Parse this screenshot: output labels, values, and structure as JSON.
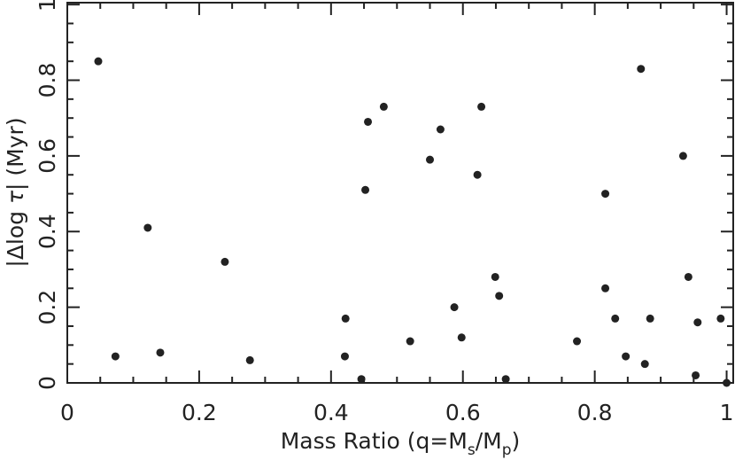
{
  "chart_data": {
    "type": "scatter",
    "x_label": [
      "Mass Ratio (q=M",
      "s",
      "/M",
      "p",
      ")"
    ],
    "y_label": [
      "|Δlog ",
      "τ",
      "| (Myr)"
    ],
    "x": [
      0.047,
      0.073,
      0.122,
      0.141,
      0.239,
      0.277,
      0.422,
      0.421,
      0.446,
      0.452,
      0.456,
      0.48,
      0.52,
      0.55,
      0.566,
      0.587,
      0.598,
      0.622,
      0.628,
      0.649,
      0.655,
      0.665,
      0.773,
      0.816,
      0.816,
      0.831,
      0.847,
      0.87,
      0.876,
      0.884,
      0.934,
      0.942,
      0.953,
      0.956,
      0.991,
      1.0
    ],
    "values": [
      0.85,
      0.07,
      0.41,
      0.08,
      0.32,
      0.06,
      0.17,
      0.07,
      0.01,
      0.51,
      0.69,
      0.73,
      0.11,
      0.59,
      0.67,
      0.2,
      0.12,
      0.55,
      0.73,
      0.28,
      0.23,
      0.01,
      0.11,
      0.5,
      0.25,
      0.17,
      0.07,
      0.83,
      0.05,
      0.17,
      0.6,
      0.28,
      0.02,
      0.16,
      0.17,
      0.0
    ],
    "color": "#222222",
    "xlim": [
      0,
      1.01
    ],
    "ylim": [
      0,
      1.005
    ],
    "xticks": [
      0,
      0.2,
      0.4,
      0.6,
      0.8,
      1
    ],
    "yticks": [
      0,
      0.2,
      0.4,
      0.6,
      0.8,
      1
    ],
    "xminorticks": [
      0.05,
      0.1,
      0.15,
      0.25,
      0.3,
      0.35,
      0.45,
      0.5,
      0.55,
      0.65,
      0.7,
      0.75,
      0.85,
      0.9,
      0.95
    ],
    "yminorticks": [
      0.05,
      0.1,
      0.15,
      0.25,
      0.3,
      0.35,
      0.45,
      0.5,
      0.55,
      0.65,
      0.7,
      0.75,
      0.85,
      0.9,
      0.95
    ]
  }
}
